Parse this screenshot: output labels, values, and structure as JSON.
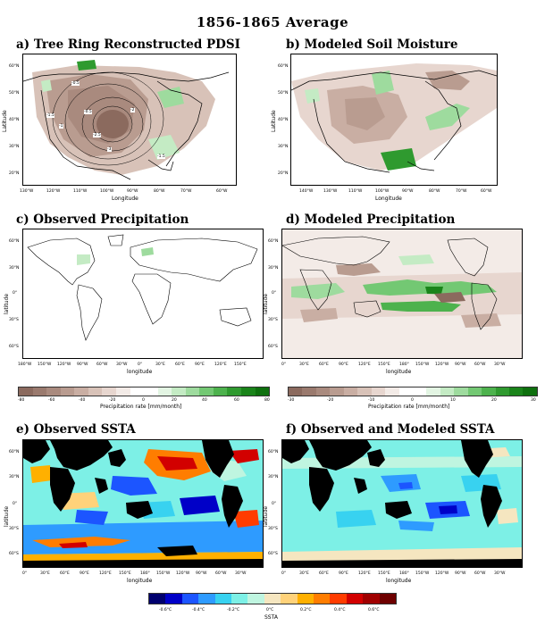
{
  "figure_title": "1856-1865 Average",
  "panels": {
    "a": {
      "title": "a) Tree Ring Reconstructed PDSI",
      "xlabel": "Longitude",
      "ylabel": "Latitude",
      "xticks": [
        "130°W",
        "120°W",
        "110°W",
        "100°W",
        "90°W",
        "80°W",
        "70°W",
        "60°W"
      ],
      "yticks": [
        "60°N",
        "50°N",
        "40°N",
        "30°N",
        "20°N"
      ],
      "contour_labels": [
        "-0.5",
        "-1.5",
        "-1",
        "-2",
        "-2.5",
        "-3",
        "-1.5",
        "-0.5"
      ]
    },
    "b": {
      "title": "b) Modeled Soil Moisture",
      "xlabel": "Longitude",
      "ylabel": "Latitude",
      "xticks": [
        "140°W",
        "130°W",
        "110°W",
        "100°W",
        "90°W",
        "80°W",
        "70°W",
        "60°W"
      ],
      "yticks": [
        "60°N",
        "50°N",
        "40°N",
        "30°N",
        "20°N"
      ]
    },
    "c": {
      "title": "c) Observed Precipitation",
      "xlabel": "longitude",
      "ylabel": "latitude",
      "xticks": [
        "180°W",
        "150°W",
        "120°W",
        "90°W",
        "60°W",
        "30°W",
        "0°",
        "30°E",
        "60°E",
        "90°E",
        "120°E",
        "150°E"
      ],
      "yticks": [
        "60°N",
        "30°N",
        "0°",
        "30°S",
        "60°S"
      ]
    },
    "d": {
      "title": "d) Modeled Precipitation",
      "xlabel": "longitude",
      "ylabel": "latitude",
      "xticks": [
        "0°",
        "30°E",
        "60°E",
        "90°E",
        "120°E",
        "150°E",
        "180°",
        "150°W",
        "120°W",
        "90°W",
        "60°W",
        "30°W"
      ],
      "yticks": [
        "60°N",
        "30°N",
        "0°",
        "30°S",
        "60°S"
      ]
    },
    "e": {
      "title": "e) Observed SSTA",
      "xlabel": "longitude",
      "ylabel": "latitude",
      "xticks": [
        "0°",
        "30°E",
        "60°E",
        "90°E",
        "120°E",
        "150°E",
        "180°",
        "150°W",
        "120°W",
        "90°W",
        "60°W",
        "30°W"
      ],
      "yticks": [
        "60°N",
        "30°N",
        "0°",
        "30°S",
        "60°S"
      ]
    },
    "f": {
      "title": "f) Observed and Modeled SSTA",
      "xlabel": "longitude",
      "ylabel": "latitude",
      "xticks": [
        "0°",
        "30°E",
        "60°E",
        "90°E",
        "120°E",
        "150°E",
        "180°",
        "150°W",
        "120°W",
        "90°W",
        "60°W",
        "30°W"
      ],
      "yticks": [
        "60°N",
        "30°N",
        "0°",
        "30°S",
        "60°S"
      ]
    }
  },
  "colorbars": {
    "precip_obs": {
      "label": "Precipitation rate [mm/month]",
      "ticks": [
        "-80",
        "-60",
        "-40",
        "-20",
        "0",
        "20",
        "40",
        "60",
        "80"
      ]
    },
    "precip_mod": {
      "label": "Precipitation rate [mm/month]",
      "ticks": [
        "-30",
        "-20",
        "-10",
        "0",
        "10",
        "20",
        "30"
      ]
    },
    "ssta": {
      "label": "SSTA",
      "ticks": [
        "-0.6°C",
        "-0.4°C",
        "-0.2°C",
        "0°C",
        "0.2°C",
        "0.4°C",
        "0.6°C"
      ]
    }
  },
  "colors": {
    "brown_scale": [
      "#8b6a5e",
      "#9a7a6e",
      "#a98a7e",
      "#b99c90",
      "#c9aea3",
      "#d8c2b8",
      "#e7d6cf",
      "#f3ebe7"
    ],
    "green_scale": [
      "#e3f5e3",
      "#c4ebc4",
      "#9edb9e",
      "#73c873",
      "#4db24d",
      "#2f9a2f",
      "#1a841a",
      "#0e700e"
    ],
    "ssta_scale": [
      "#00006e",
      "#0000c8",
      "#1c55ff",
      "#2e9bff",
      "#38d2f0",
      "#7df0e6",
      "#bff5e0",
      "#f5e6c0",
      "#ffd27a",
      "#ffb000",
      "#ff7d00",
      "#ff3c00",
      "#d20000",
      "#a00000",
      "#6e0000"
    ],
    "land": "#000000"
  }
}
